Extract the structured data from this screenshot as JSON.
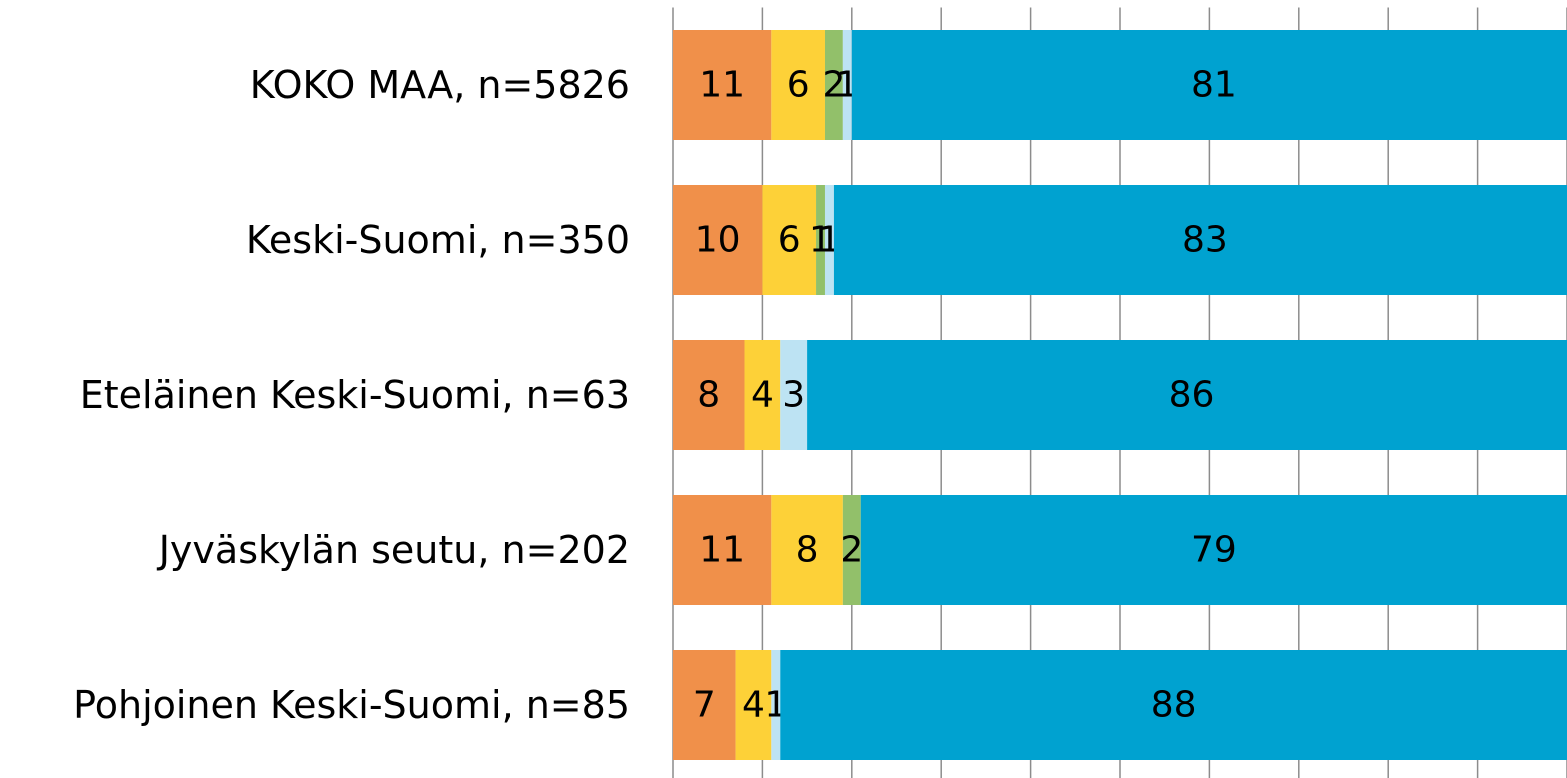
{
  "chart_data": {
    "type": "stacked-bar-horizontal",
    "categories": [
      "KOKO MAA, n=5826",
      "Keski-Suomi, n=350",
      "Eteläinen Keski-Suomi, n=63",
      "Jyväskylän seutu, n=202",
      "Pohjoinen Keski-Suomi, n=85"
    ],
    "series": [
      {
        "color": "#f0904a",
        "values": [
          11,
          10,
          8,
          11,
          7
        ]
      },
      {
        "color": "#fdd138",
        "values": [
          6,
          6,
          4,
          8,
          4
        ]
      },
      {
        "color": "#92c06a",
        "values": [
          2,
          1,
          null,
          2,
          null
        ]
      },
      {
        "color": "#bde3f3",
        "values": [
          1,
          1,
          3,
          null,
          1
        ]
      },
      {
        "color": "#00a2d0",
        "values": [
          81,
          83,
          86,
          79,
          88
        ]
      }
    ],
    "xlim": [
      0,
      100
    ],
    "xticks": [
      0,
      10,
      20,
      30,
      40,
      50,
      60,
      70,
      80,
      90,
      100
    ],
    "grid": true
  }
}
